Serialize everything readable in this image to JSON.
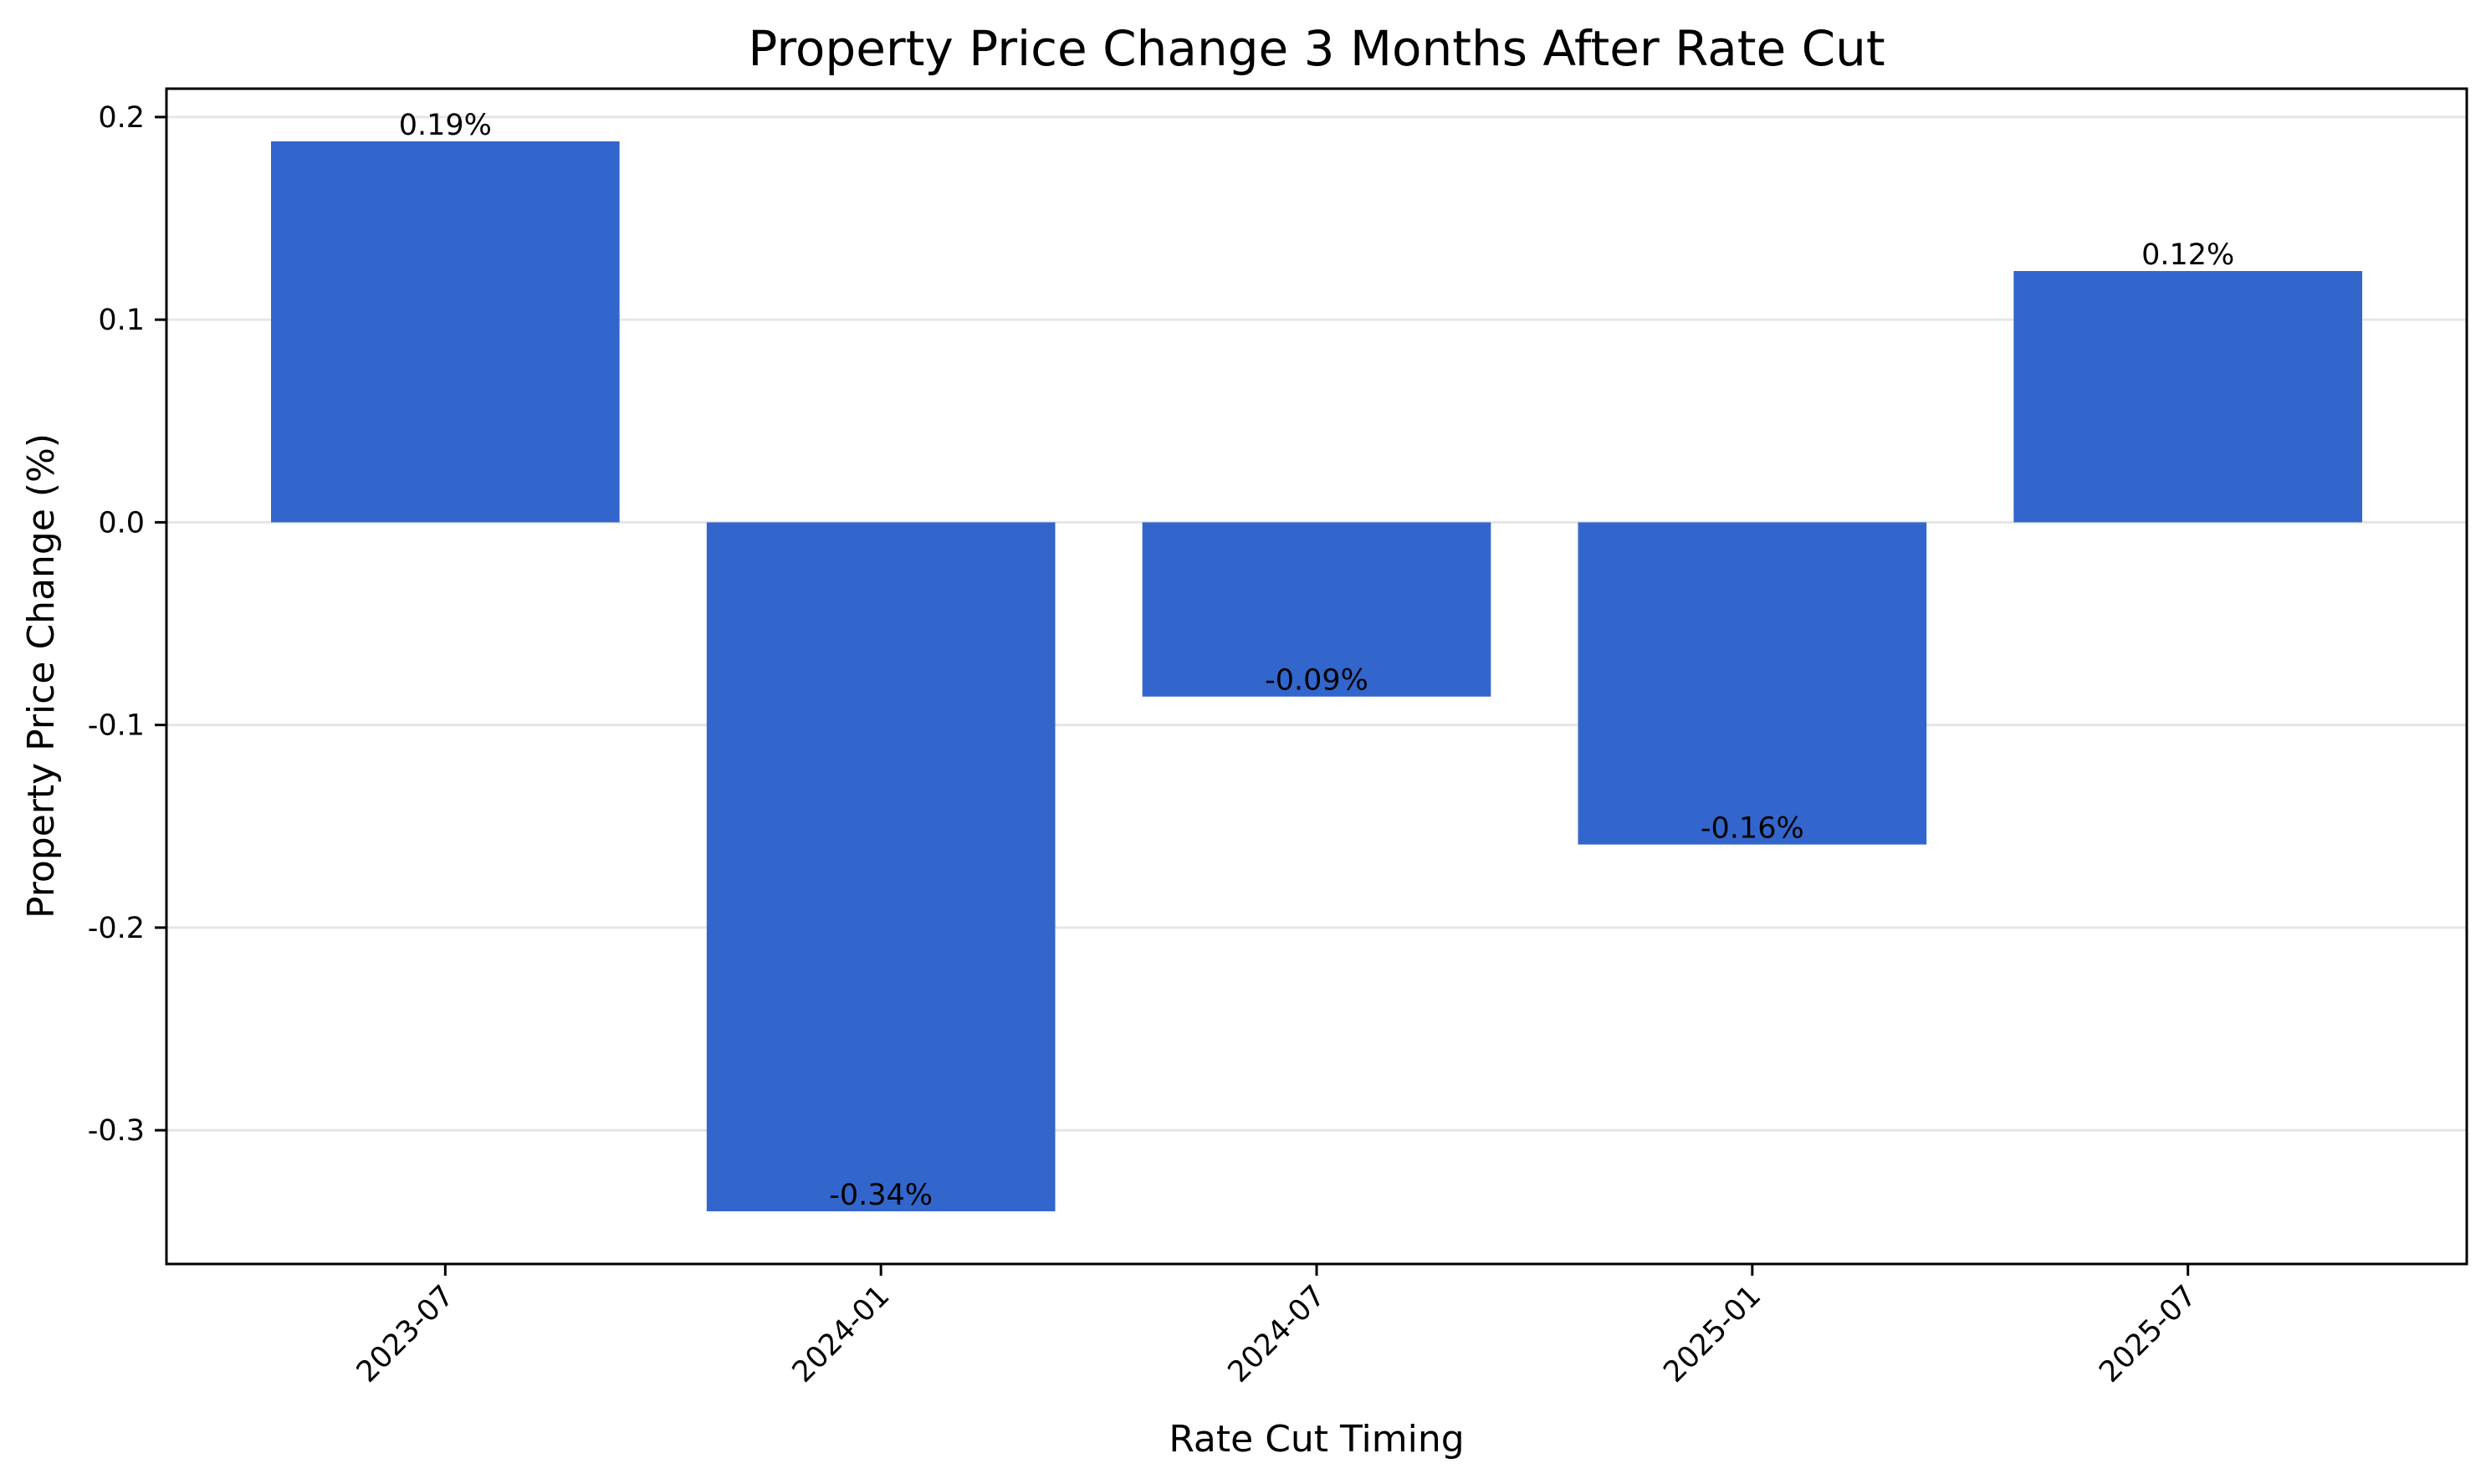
{
  "chart_data": {
    "type": "bar",
    "title": "Property Price Change 3 Months After Rate Cut",
    "xlabel": "Rate Cut Timing",
    "ylabel": "Property Price Change (%)",
    "categories": [
      "2023-07",
      "2024-01",
      "2024-07",
      "2025-01",
      "2025-07"
    ],
    "values": [
      0.188,
      -0.34,
      -0.086,
      -0.159,
      0.124
    ],
    "value_labels": [
      "0.19%",
      "-0.34%",
      "-0.09%",
      "-0.16%",
      "0.12%"
    ],
    "ylim": [
      -0.366,
      0.214
    ],
    "yticks": [
      0.2,
      0.1,
      0.0,
      -0.1,
      -0.2,
      -0.3
    ],
    "ytick_labels": [
      "0.2",
      "0.1",
      "0.0",
      "-0.1",
      "-0.2",
      "-0.3"
    ],
    "grid": "horizontal",
    "bar_color": "#3366cc"
  }
}
